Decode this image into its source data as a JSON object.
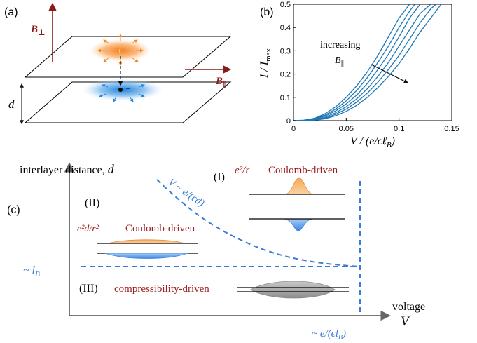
{
  "figure": {
    "panel_a": {
      "label": "(a)",
      "b_perp_label": "B",
      "b_perp_sub": "⊥",
      "b_par_label": "B",
      "b_par_sub": "∥",
      "d_label": "d",
      "colors": {
        "field": "#8b1a1a",
        "top_charge": "#f58a20",
        "bottom_charge": "#2a86d6"
      }
    },
    "panel_b": {
      "label": "(b)",
      "annotation_line1": "increasing",
      "annotation_line2": "B",
      "annotation_sub": "∥",
      "ylabel": "I / I",
      "ylabel_sub": "max",
      "xlabel": "V / (e/ϵℓ",
      "xlabel_sub": "B",
      "xlabel_tail": ")"
    },
    "panel_c": {
      "label": "(c)",
      "yaxis_label": "interlayer distance, ",
      "yaxis_var": "d",
      "xaxis_label": "voltage",
      "xaxis_var": "V",
      "regime_I_label": "(I)",
      "regime_I_desc": "Coulomb-driven",
      "regime_I_formula": "e²/r",
      "regime_II_label": "(II)",
      "regime_II_desc": "Coulomb-driven",
      "regime_II_formula": "e²d/r²",
      "regime_III_label": "(III)",
      "regime_III_desc": "compressibility-driven",
      "boundary_curve_label": "V ~ e/(ϵd)",
      "lb_label": "~ l",
      "lb_sub": "B",
      "vertical_line_label": "~ e/(ϵl",
      "vertical_line_sub": "B",
      "vertical_line_tail": ")",
      "colors": {
        "dashed": "#3a7bd5",
        "regime_text": "#a01c1c",
        "orange": "#f5a04a",
        "blue": "#3d86e0",
        "gray": "#9a9a9a"
      }
    }
  },
  "chart_data": {
    "type": "line",
    "title": "",
    "xlabel": "V/(e/ϵℓ_B)",
    "ylabel": "I/I_max",
    "xlim": [
      0,
      0.15
    ],
    "ylim": [
      0,
      0.5
    ],
    "xticks": [
      0,
      0.05,
      0.1,
      0.15
    ],
    "yticks": [
      0,
      0.1,
      0.2,
      0.3,
      0.4,
      0.5
    ],
    "series": [
      {
        "x": [
          0,
          0.01,
          0.02,
          0.03,
          0.04,
          0.05,
          0.06,
          0.07,
          0.08,
          0.09,
          0.1,
          0.11
        ],
        "y": [
          0,
          0.002,
          0.01,
          0.03,
          0.06,
          0.1,
          0.15,
          0.21,
          0.28,
          0.36,
          0.44,
          0.5
        ]
      },
      {
        "x": [
          0,
          0.01,
          0.02,
          0.03,
          0.04,
          0.05,
          0.06,
          0.07,
          0.08,
          0.09,
          0.1,
          0.11,
          0.115
        ],
        "y": [
          0,
          0.001,
          0.008,
          0.024,
          0.05,
          0.085,
          0.13,
          0.185,
          0.25,
          0.32,
          0.4,
          0.47,
          0.5
        ]
      },
      {
        "x": [
          0,
          0.01,
          0.02,
          0.03,
          0.04,
          0.05,
          0.06,
          0.07,
          0.08,
          0.09,
          0.1,
          0.11,
          0.12
        ],
        "y": [
          0,
          0.001,
          0.006,
          0.02,
          0.042,
          0.072,
          0.11,
          0.16,
          0.22,
          0.285,
          0.36,
          0.44,
          0.5
        ]
      },
      {
        "x": [
          0,
          0.01,
          0.02,
          0.03,
          0.04,
          0.05,
          0.06,
          0.07,
          0.08,
          0.09,
          0.1,
          0.11,
          0.12,
          0.13
        ],
        "y": [
          0,
          0.0005,
          0.004,
          0.015,
          0.034,
          0.06,
          0.094,
          0.137,
          0.19,
          0.25,
          0.32,
          0.39,
          0.46,
          0.5
        ]
      },
      {
        "x": [
          0,
          0.01,
          0.02,
          0.03,
          0.04,
          0.05,
          0.06,
          0.07,
          0.08,
          0.09,
          0.1,
          0.11,
          0.12,
          0.13,
          0.135
        ],
        "y": [
          0,
          0.0003,
          0.003,
          0.011,
          0.027,
          0.05,
          0.08,
          0.118,
          0.165,
          0.22,
          0.28,
          0.35,
          0.42,
          0.48,
          0.5
        ]
      },
      {
        "x": [
          0,
          0.01,
          0.02,
          0.03,
          0.04,
          0.05,
          0.06,
          0.07,
          0.08,
          0.09,
          0.1,
          0.11,
          0.12,
          0.13,
          0.14
        ],
        "y": [
          0,
          0.0002,
          0.002,
          0.008,
          0.021,
          0.04,
          0.066,
          0.1,
          0.142,
          0.19,
          0.245,
          0.31,
          0.38,
          0.44,
          0.5
        ]
      }
    ],
    "grid": false,
    "legend": "none"
  }
}
